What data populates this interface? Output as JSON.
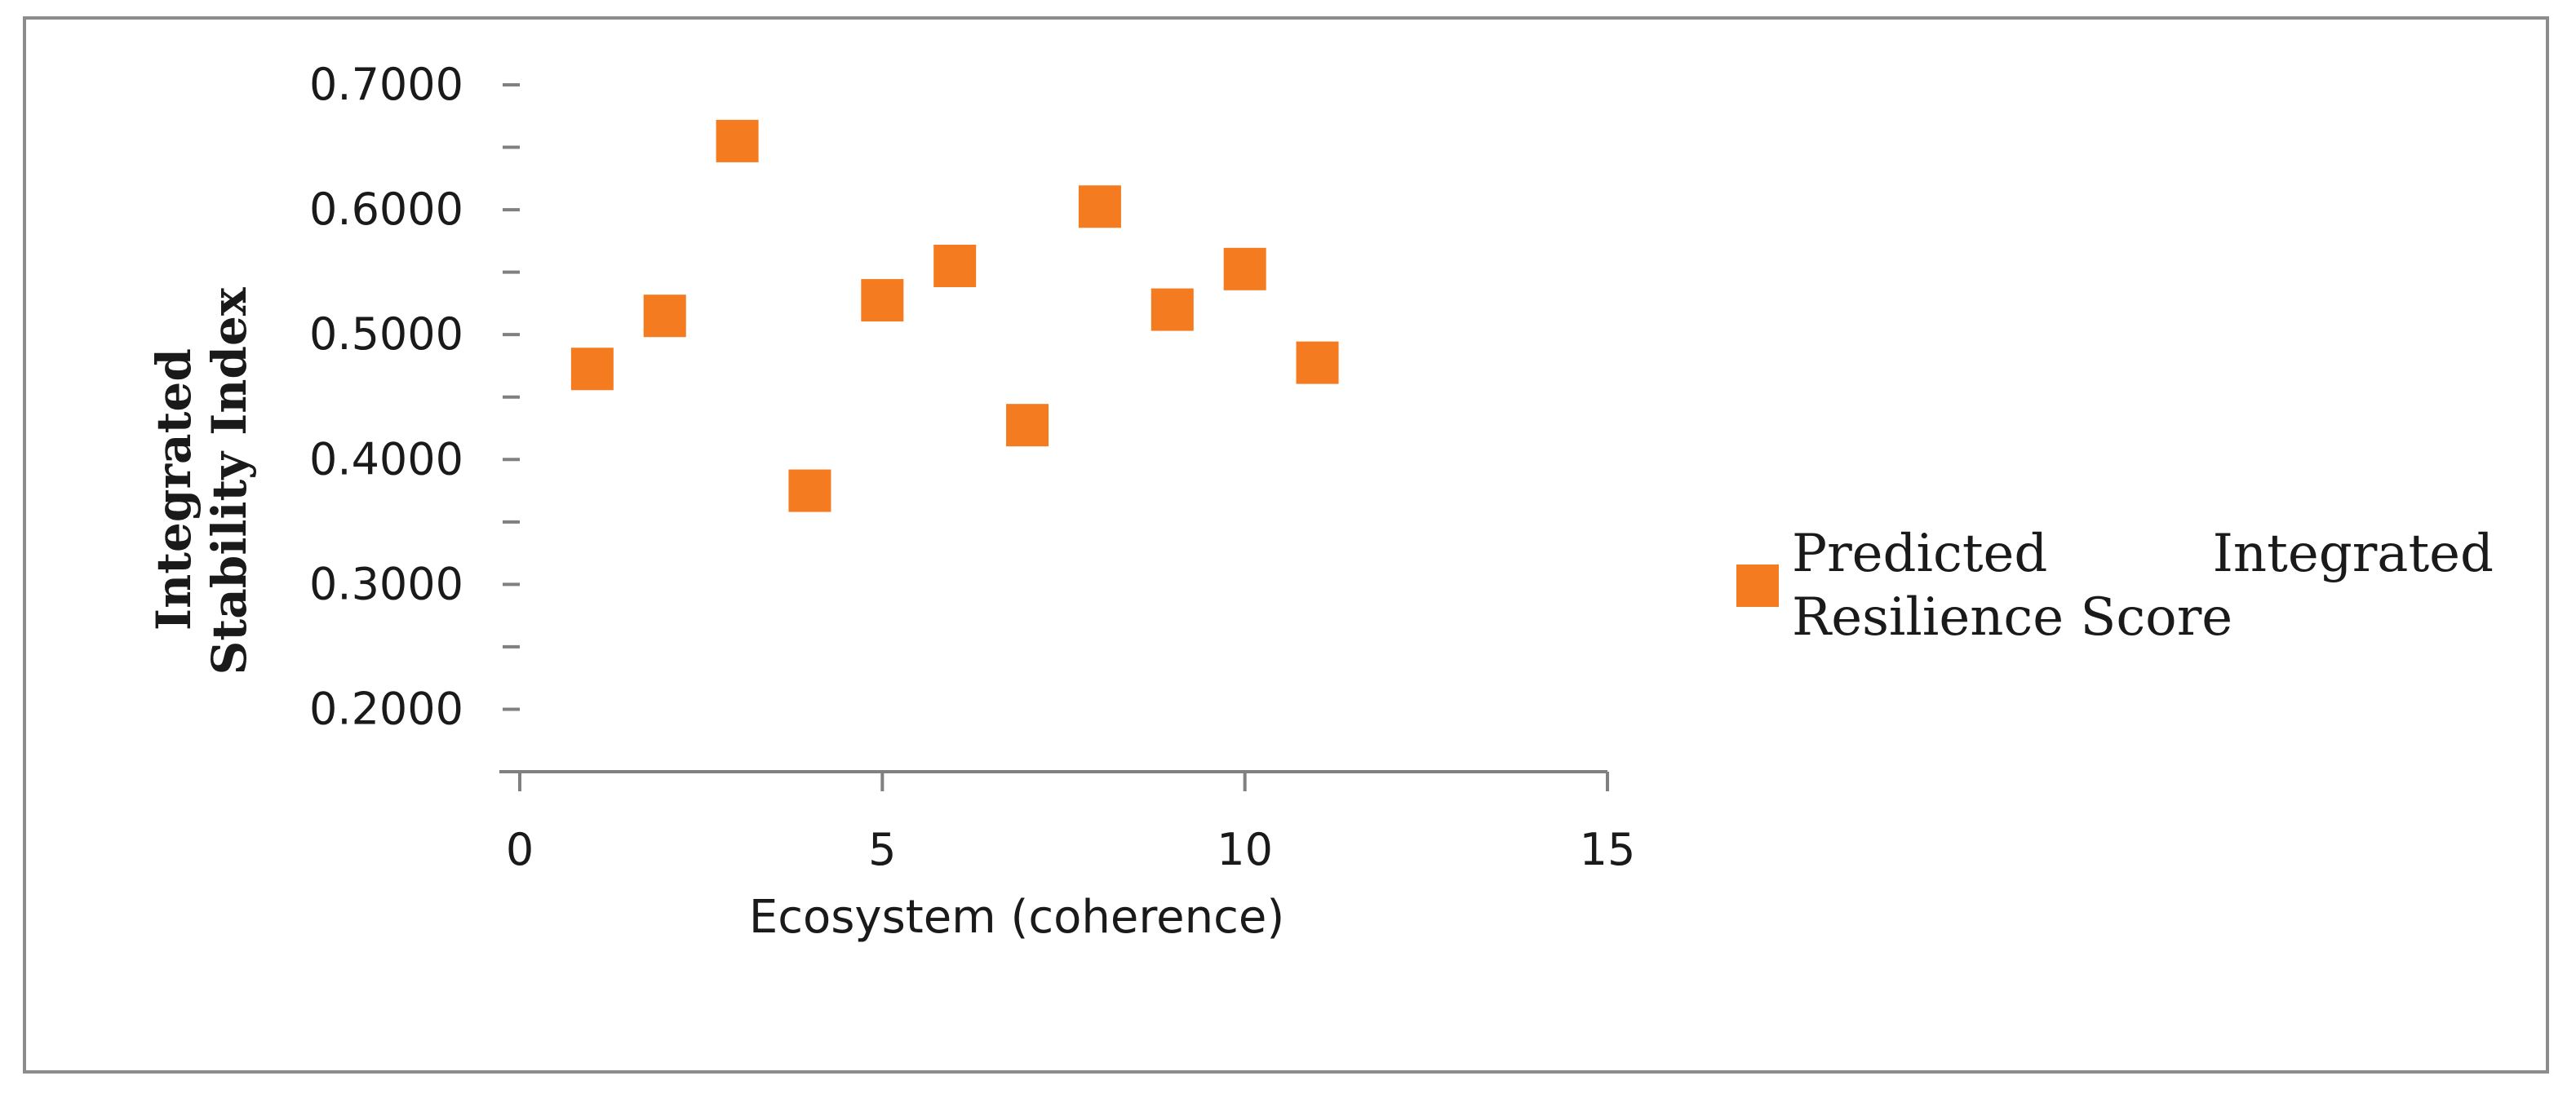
{
  "chart_data": {
    "type": "scatter",
    "xlabel": "Ecosystem (coherence)",
    "ylabel": "Integrated Stability Index",
    "xlim": [
      0,
      15
    ],
    "ylim": [
      0.15,
      0.7
    ],
    "x_ticks": [
      0,
      5,
      10,
      15
    ],
    "x_tick_labels": [
      "0",
      "5",
      "10",
      "15"
    ],
    "y_ticks": [
      0.2,
      0.25,
      0.3,
      0.35,
      0.4,
      0.45,
      0.5,
      0.55,
      0.6,
      0.65,
      0.7
    ],
    "y_tick_labels": [
      "0.2000",
      "",
      "0.3000",
      "",
      "0.4000",
      "",
      "0.5000",
      "",
      "0.6000",
      "",
      "0.7000"
    ],
    "grid": false,
    "legend_position": "right",
    "series": [
      {
        "name": "Predicted Integrated Resilience Score",
        "color": "#f47b20",
        "marker": "square",
        "points": [
          {
            "x": 1,
            "y": 0.4725
          },
          {
            "x": 2,
            "y": 0.515
          },
          {
            "x": 3,
            "y": 0.655
          },
          {
            "x": 4,
            "y": 0.375
          },
          {
            "x": 5,
            "y": 0.5275
          },
          {
            "x": 6,
            "y": 0.555
          },
          {
            "x": 7,
            "y": 0.4275
          },
          {
            "x": 8,
            "y": 0.6025
          },
          {
            "x": 9,
            "y": 0.52
          },
          {
            "x": 10,
            "y": 0.5525
          },
          {
            "x": 11,
            "y": 0.4775
          }
        ]
      }
    ]
  }
}
